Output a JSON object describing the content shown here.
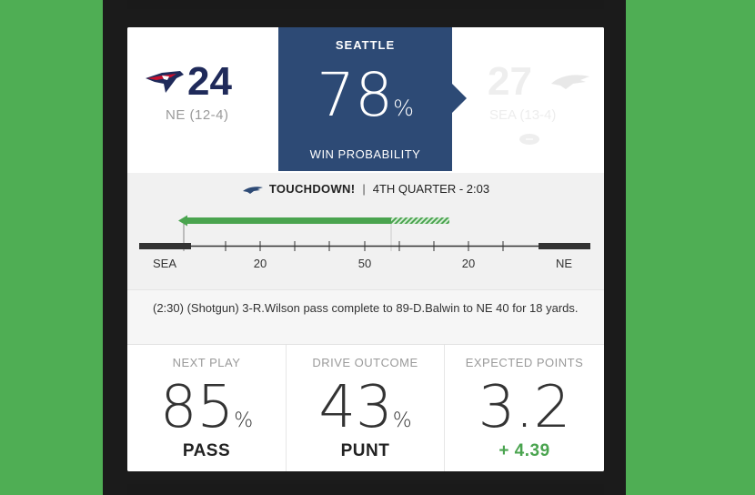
{
  "home": {
    "score": "24",
    "record": "NE (12-4)",
    "logo": "patriots-logo"
  },
  "away": {
    "score": "27",
    "record": "SEA (13-4)",
    "logo": "seahawks-logo"
  },
  "win_probability": {
    "team": "SEATTLE",
    "value": "78",
    "unit": "%",
    "label": "WIN PROBABILITY"
  },
  "play_header": {
    "event": "TOUCHDOWN!",
    "separator": "|",
    "time": "4TH QUARTER - 2:03"
  },
  "field": {
    "labels": [
      "SEA",
      "20",
      "50",
      "20",
      "NE"
    ],
    "drive_color": "#4aa44f",
    "endzone_color": "#333333"
  },
  "description": "(2:30) (Shotgun) 3-R.Wilson pass complete to 89-D.Balwin to NE 40 for 18 yards.",
  "stats": [
    {
      "title": "NEXT PLAY",
      "value": "85",
      "unit": "%",
      "sub": "PASS"
    },
    {
      "title": "DRIVE OUTCOME",
      "value": "43",
      "unit": "%",
      "sub": "PUNT"
    },
    {
      "title": "EXPECTED POINTS",
      "value": "3.2",
      "unit": "",
      "sub": "+ 4.39"
    }
  ],
  "colors": {
    "accent_blue": "#2d4a75",
    "green": "#4aa44f",
    "background": "#4fae54"
  }
}
